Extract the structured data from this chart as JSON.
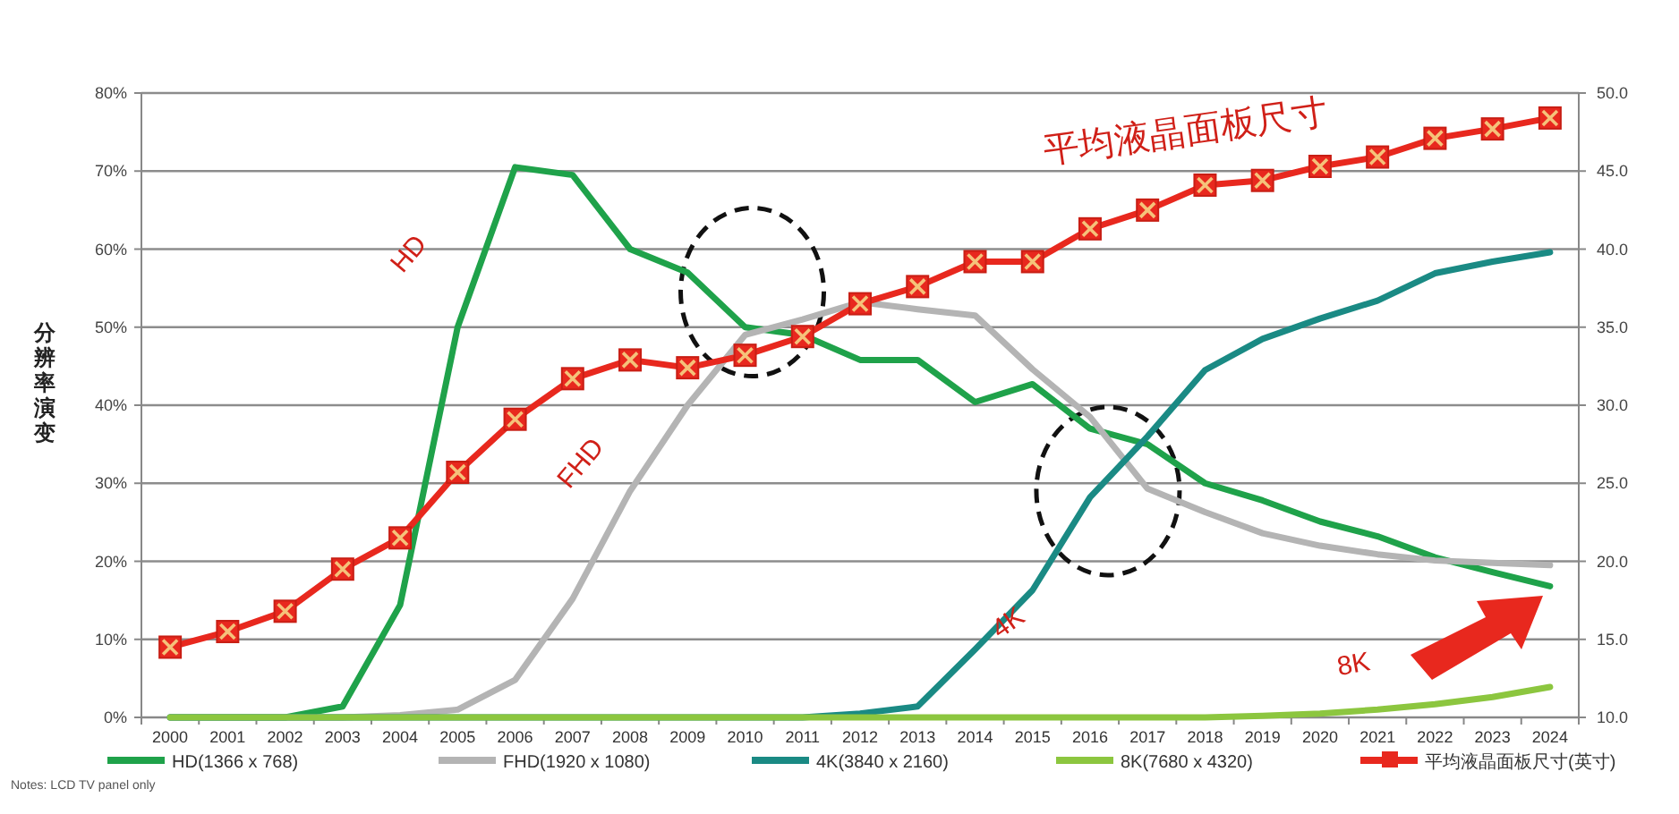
{
  "chart_data": {
    "type": "line",
    "ylabel": "分辨率演变",
    "categories": [
      "2000",
      "2001",
      "2002",
      "2003",
      "2004",
      "2005",
      "2006",
      "2007",
      "2008",
      "2009",
      "2010",
      "2011",
      "2012",
      "2013",
      "2014",
      "2015",
      "2016",
      "2017",
      "2018",
      "2019",
      "2020",
      "2021",
      "2022",
      "2023",
      "2024"
    ],
    "series": [
      {
        "name": "HD(1366 x 768)",
        "color": "#1fa24a",
        "values": [
          0,
          0,
          0,
          1.4,
          14.4,
          50,
          70.5,
          69.5,
          60,
          57,
          50,
          49,
          45.8,
          45.8,
          40.4,
          42.7,
          37,
          35,
          30,
          27.8,
          25.1,
          23.2,
          20.5,
          18.6,
          16.8
        ]
      },
      {
        "name": "FHD(1920 x 1080)",
        "color": "#b4b4b4",
        "values": [
          0,
          0,
          0,
          0,
          0.3,
          1,
          4.8,
          15.2,
          29,
          40,
          49,
          51,
          53.2,
          52.3,
          51.5,
          44.6,
          38.5,
          29.3,
          26.3,
          23.6,
          22,
          20.9,
          20.1,
          19.8,
          19.5
        ]
      },
      {
        "name": "4K(3840 x 2160)",
        "color": "#1a8a84",
        "values": [
          0,
          0,
          0,
          0,
          0,
          0,
          0,
          0,
          0,
          0,
          0,
          0,
          0.5,
          1.4,
          8.7,
          16.3,
          28.2,
          36,
          44.5,
          48.5,
          51.1,
          53.4,
          56.9,
          58.4,
          59.6
        ]
      },
      {
        "name": "8K(7680 x 4320)",
        "color": "#8cc63f",
        "values": [
          0,
          0,
          0,
          0,
          0,
          0,
          0,
          0,
          0,
          0,
          0,
          0,
          0,
          0,
          0,
          0,
          0,
          0,
          0,
          0.2,
          0.5,
          1,
          1.7,
          2.6,
          3.9
        ]
      },
      {
        "name": "平均液晶面板尺寸(英寸)",
        "color": "#e8281e",
        "axis": "y2",
        "marker": "square",
        "values": [
          14.5,
          15.5,
          16.8,
          19.5,
          21.5,
          25.7,
          29.1,
          31.7,
          32.9,
          32.4,
          33.2,
          34.4,
          36.5,
          37.6,
          39.2,
          39.2,
          41.3,
          42.5,
          44.1,
          44.4,
          45.3,
          45.9,
          47.1,
          47.7,
          48.4
        ]
      }
    ],
    "ylim": [
      0,
      80
    ],
    "yticks": [
      {
        "value": 0,
        "label": "0%"
      },
      {
        "value": 10,
        "label": "10%"
      },
      {
        "value": 20,
        "label": "20%"
      },
      {
        "value": 30,
        "label": "30%"
      },
      {
        "value": 40,
        "label": "40%"
      },
      {
        "value": 50,
        "label": "50%"
      },
      {
        "value": 60,
        "label": "60%"
      },
      {
        "value": 70,
        "label": "70%"
      },
      {
        "value": 80,
        "label": "80%"
      }
    ],
    "y2lim": [
      10,
      50
    ],
    "y2ticks": [
      {
        "value": 10,
        "label": "10.0"
      },
      {
        "value": 15,
        "label": "15.0"
      },
      {
        "value": 20,
        "label": "20.0"
      },
      {
        "value": 25,
        "label": "25.0"
      },
      {
        "value": 30,
        "label": "30.0"
      },
      {
        "value": 35,
        "label": "35.0"
      },
      {
        "value": 40,
        "label": "40.0"
      },
      {
        "value": 45,
        "label": "45.0"
      },
      {
        "value": 50,
        "label": "50.0"
      }
    ],
    "grid": "y",
    "legend": "bottom",
    "marker": "none",
    "line_style": "solid",
    "annotations": [
      "HD",
      "FHD",
      "4K",
      "8K",
      "平均液晶面板尺寸",
      "Notes: LCD TV panel only"
    ]
  }
}
